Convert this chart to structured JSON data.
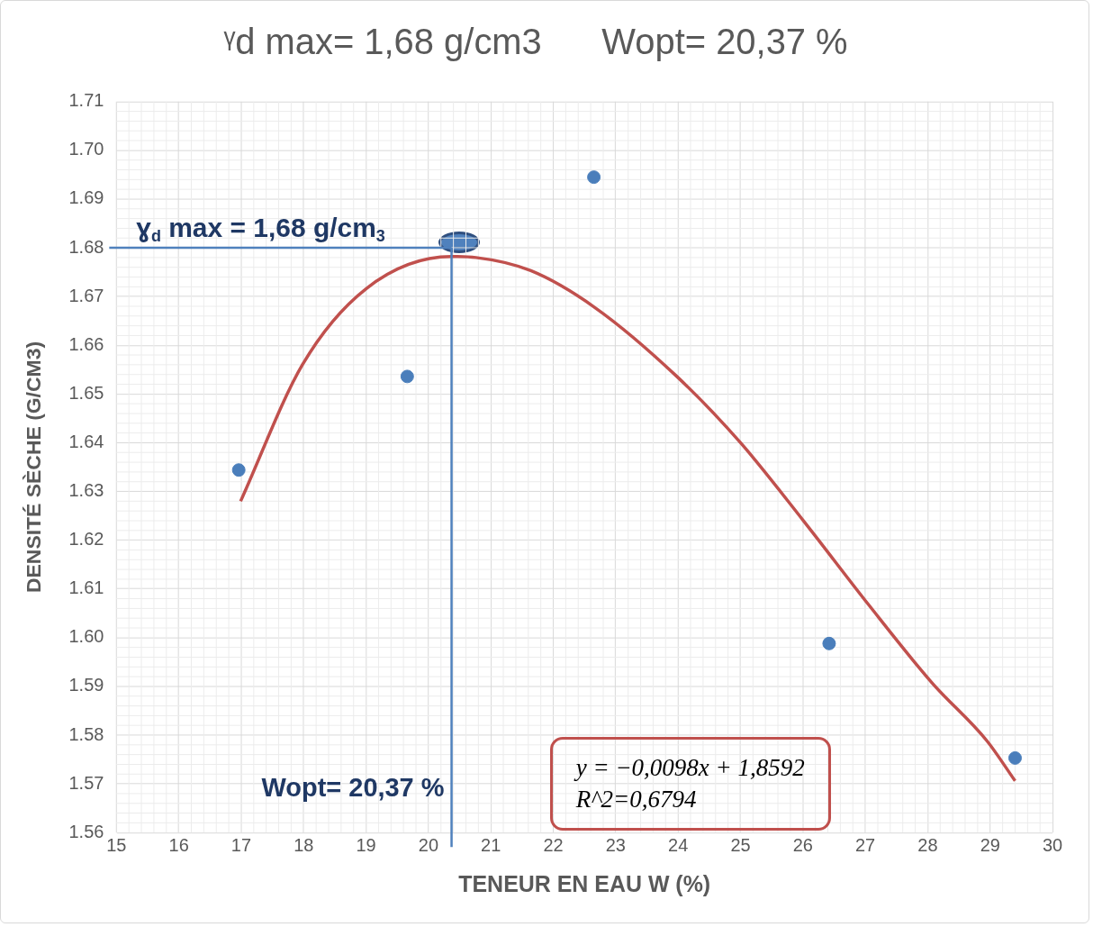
{
  "chart_data": {
    "type": "scatter",
    "title": "ᵞd max= 1,68 g/cm3      Wopt= 20,37 %",
    "xlabel": "TENEUR EN EAU W (%)",
    "ylabel": "DENSITÉ SÈCHE (G/CM3)",
    "series": [
      {
        "color": "#4a7ebb",
        "marker": "circle",
        "x": [
          16.96,
          19.66,
          22.65,
          26.42,
          29.4
        ],
        "values": [
          1.6344,
          1.6536,
          1.6945,
          1.5988,
          1.5753
        ]
      },
      {
        "type": "line",
        "color": "#c0504d",
        "marker": "none",
        "x": [
          16.99,
          17.98,
          19.0,
          20.37,
          20.76,
          21.64,
          22.66,
          23.98,
          25.0,
          26.02,
          27.05,
          28.07,
          28.95,
          29.4
        ],
        "values": [
          1.628,
          1.656,
          1.6716,
          1.6782,
          1.678,
          1.6753,
          1.6678,
          1.6536,
          1.64,
          1.6238,
          1.6068,
          1.5907,
          1.5788,
          1.5706
        ]
      }
    ],
    "xlim": [
      15,
      30
    ],
    "xticks": [
      15,
      16,
      17,
      18,
      19,
      20,
      21,
      22,
      23,
      24,
      25,
      26,
      27,
      28,
      29,
      30
    ],
    "ylim": [
      1.56,
      1.71
    ],
    "yticks": [
      1.56,
      1.57,
      1.58,
      1.59,
      {
        "value": 1.6,
        "label": "1.60"
      },
      1.61,
      1.62,
      1.63,
      1.64,
      1.65,
      1.66,
      1.67,
      1.68,
      1.69,
      {
        "value": 1.7,
        "label": "1.70"
      },
      1.71
    ],
    "grid": true,
    "legend": false,
    "ref_lines": [
      {
        "axis": "y",
        "value": 1.68,
        "label": "ɣ$_{d}$ max = 1,68 g/cm$_{3}$",
        "color": "#4f81bd"
      },
      {
        "axis": "x",
        "value": 20.37,
        "label": "Wopt= 20,37 %",
        "color": "#4f81bd"
      }
    ],
    "annotations": [
      "y = −0,0098x + 1,8592",
      "R^2=0,6794"
    ]
  }
}
